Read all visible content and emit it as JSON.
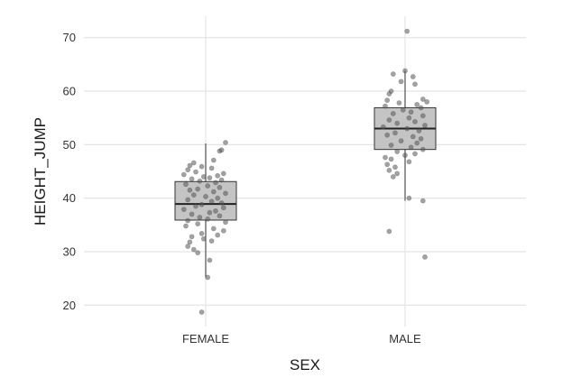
{
  "chart_data": {
    "type": "boxplot",
    "xlabel": "SEX",
    "ylabel": "HEIGHT_JUMP",
    "categories": [
      "FEMALE",
      "MALE"
    ],
    "ylim": [
      16,
      74
    ],
    "yticks": [
      20,
      30,
      40,
      50,
      60,
      70
    ],
    "grid": true,
    "legend": "none",
    "colors": {
      "box_fill": "#c4c4c4",
      "box_stroke": "#333333",
      "points": "#555555",
      "grid": "#e4e4e4"
    },
    "boxes": [
      {
        "category": "FEMALE",
        "min": 25.2,
        "q1": 35.9,
        "median": 38.9,
        "q3": 43.1,
        "max": 50.2
      },
      {
        "category": "MALE",
        "min": 39.5,
        "q1": 49.1,
        "median": 53.0,
        "q3": 56.9,
        "max": 63.8
      }
    ],
    "points": [
      {
        "category": "FEMALE",
        "values": [
          50.4,
          49.0,
          48.8,
          47.1,
          46.6,
          46.1,
          45.9,
          45.6,
          45.3,
          44.9,
          44.6,
          44.4,
          44.2,
          44.0,
          43.8,
          43.6,
          43.4,
          43.2,
          42.9,
          42.6,
          42.3,
          42.0,
          41.7,
          41.5,
          41.2,
          40.9,
          40.6,
          40.3,
          40.0,
          39.7,
          39.4,
          39.1,
          38.8,
          38.5,
          38.2,
          37.9,
          37.6,
          37.3,
          37.0,
          36.7,
          36.4,
          36.1,
          35.8,
          35.5,
          35.2,
          34.8,
          34.3,
          33.9,
          33.4,
          33.1,
          32.8,
          32.4,
          32.0,
          31.8,
          31.0,
          30.4,
          29.8,
          28.4,
          25.2,
          18.7
        ],
        "jitter": [
          0.2,
          0.16,
          0.14,
          0.08,
          -0.12,
          -0.16,
          -0.04,
          0.06,
          -0.18,
          -0.1,
          0.18,
          -0.22,
          0.12,
          -0.02,
          0.04,
          -0.14,
          0.16,
          -0.06,
          0.1,
          -0.2,
          0.02,
          0.14,
          -0.08,
          -0.16,
          0.08,
          0.2,
          -0.12,
          0.0,
          0.12,
          -0.18,
          0.06,
          0.16,
          -0.04,
          -0.1,
          0.18,
          -0.22,
          0.1,
          0.04,
          -0.14,
          0.14,
          -0.06,
          0.02,
          -0.18,
          0.2,
          -0.08,
          -0.2,
          0.08,
          0.18,
          -0.04,
          0.12,
          -0.14,
          -0.02,
          0.06,
          -0.16,
          -0.18,
          -0.12,
          -0.08,
          0.04,
          0.02,
          -0.04
        ]
      },
      {
        "category": "MALE",
        "values": [
          71.2,
          63.8,
          63.2,
          62.7,
          61.8,
          61.3,
          60.0,
          59.5,
          58.5,
          58.3,
          58.0,
          57.8,
          57.5,
          57.2,
          56.9,
          56.5,
          56.1,
          55.8,
          55.4,
          55.0,
          54.6,
          54.3,
          54.0,
          53.6,
          53.3,
          53.0,
          52.6,
          52.2,
          51.8,
          51.5,
          51.1,
          50.7,
          50.3,
          49.9,
          49.5,
          49.1,
          48.7,
          48.3,
          48.0,
          47.6,
          47.3,
          46.8,
          46.3,
          45.8,
          45.2,
          44.6,
          44.0,
          40.0,
          39.5,
          33.8,
          29.0
        ],
        "jitter": [
          0.02,
          0.0,
          -0.12,
          0.08,
          -0.04,
          0.1,
          -0.14,
          -0.16,
          0.18,
          -0.18,
          0.22,
          -0.06,
          0.12,
          -0.2,
          0.16,
          -0.02,
          0.06,
          -0.12,
          0.18,
          0.04,
          -0.16,
          0.1,
          -0.08,
          0.2,
          -0.22,
          0.02,
          0.14,
          -0.1,
          -0.18,
          0.08,
          0.16,
          -0.04,
          0.12,
          -0.14,
          0.06,
          0.18,
          -0.08,
          0.1,
          0.0,
          -0.2,
          -0.14,
          0.04,
          -0.18,
          -0.1,
          -0.16,
          -0.08,
          -0.12,
          0.04,
          0.18,
          -0.16,
          0.2
        ]
      }
    ]
  }
}
